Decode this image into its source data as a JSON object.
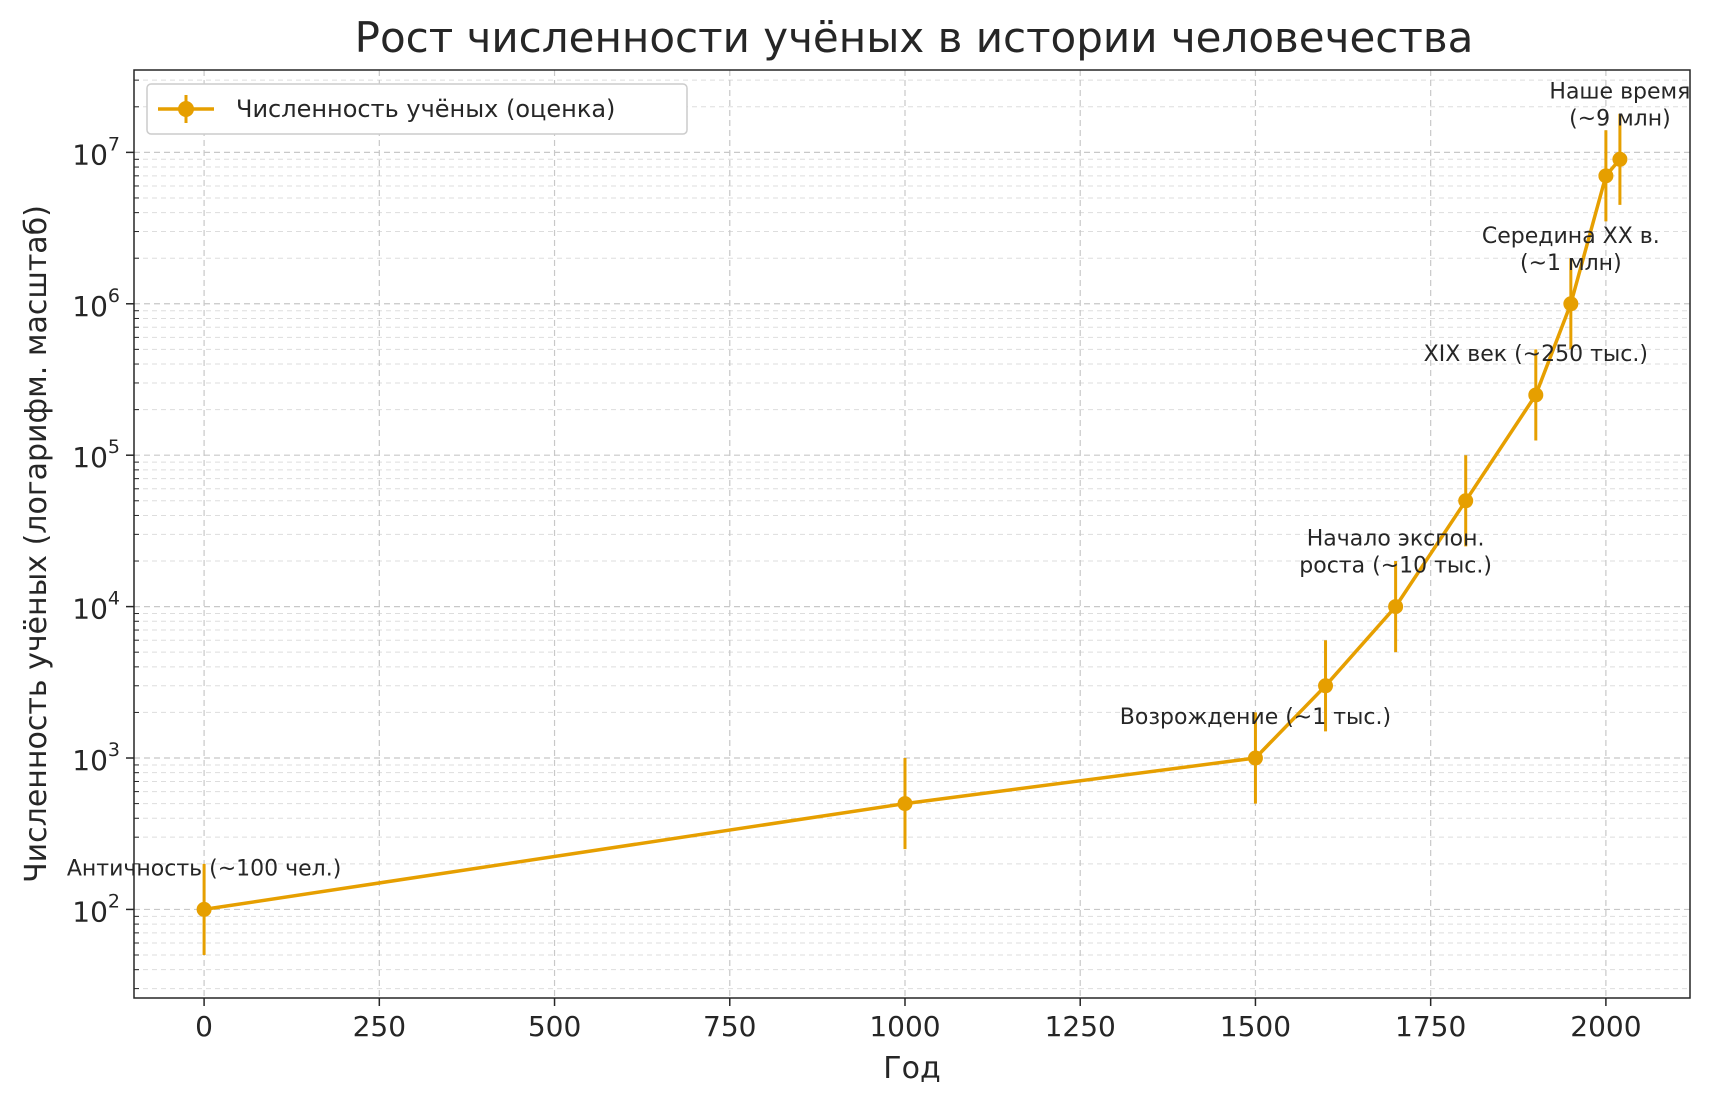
{
  "chart_data": {
    "type": "line",
    "title": "Рост численности учёных в истории человечества",
    "xlabel": "Год",
    "ylabel": "Численность учёных (логарифм. масштаб)",
    "xlim": [
      -100,
      2120
    ],
    "ylim": [
      26,
      35000000
    ],
    "yscale": "log",
    "grid": true,
    "legend_position": "top-left",
    "x_ticks": [
      0,
      250,
      500,
      750,
      1000,
      1250,
      1500,
      1750,
      2000
    ],
    "x_tick_labels": [
      "0",
      "250",
      "500",
      "750",
      "1000",
      "1250",
      "1500",
      "1750",
      "2000"
    ],
    "y_ticks": [
      100,
      1000,
      10000,
      100000,
      1000000,
      10000000
    ],
    "y_tick_labels": [
      {
        "base": "10",
        "exp": "2"
      },
      {
        "base": "10",
        "exp": "3"
      },
      {
        "base": "10",
        "exp": "4"
      },
      {
        "base": "10",
        "exp": "5"
      },
      {
        "base": "10",
        "exp": "6"
      },
      {
        "base": "10",
        "exp": "7"
      }
    ],
    "series": [
      {
        "name": "Численность учёных (оценка)",
        "color": "#e69f00",
        "x": [
          0,
          1000,
          1500,
          1600,
          1700,
          1800,
          1900,
          1950,
          2000,
          2020
        ],
        "y": [
          100,
          500,
          1000,
          3000,
          10000,
          50000,
          250000,
          1000000,
          7000000,
          9000000
        ],
        "y_err_low": [
          50,
          250,
          500,
          1500,
          5000,
          25000,
          125000,
          500000,
          3500000,
          4500000
        ],
        "y_err_high": [
          200,
          1000,
          2000,
          6000,
          20000,
          100000,
          500000,
          2000000,
          14000000,
          18000000
        ]
      }
    ],
    "annotations": [
      {
        "lines": [
          "Античность (~100 чел.)"
        ],
        "x": 0,
        "y": 100
      },
      {
        "lines": [
          "Возрождение (~1 тыс.)"
        ],
        "x": 1500,
        "y": 1000
      },
      {
        "lines": [
          "Начало экспон.",
          "роста (~10 тыс.)"
        ],
        "x": 1700,
        "y": 10000
      },
      {
        "lines": [
          "XIX век (~250 тыс.)"
        ],
        "x": 1900,
        "y": 250000
      },
      {
        "lines": [
          "Середина XX в.",
          "(~1 млн)"
        ],
        "x": 1950,
        "y": 1000000
      },
      {
        "lines": [
          "Наше время",
          "(~9 млн)"
        ],
        "x": 2020,
        "y": 9000000
      }
    ]
  }
}
